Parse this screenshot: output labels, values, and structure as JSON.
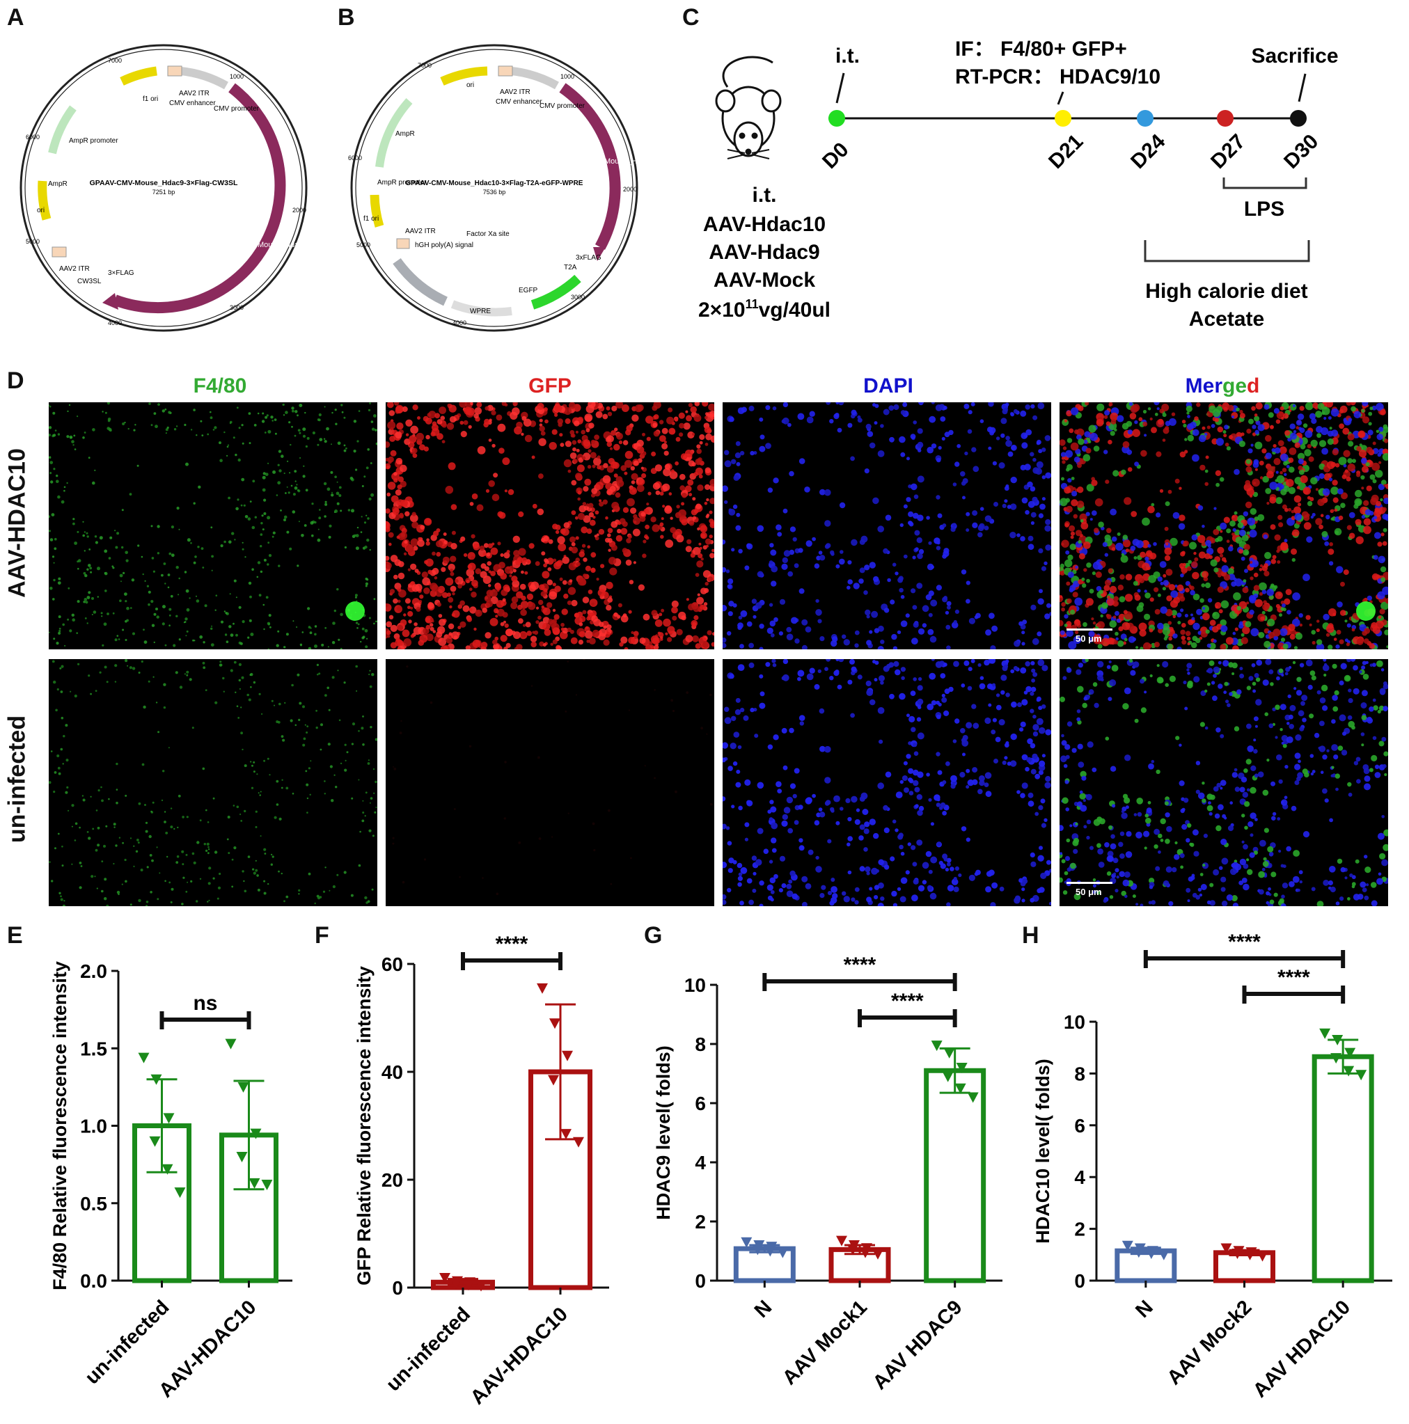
{
  "panels": {
    "A": "A",
    "B": "B",
    "C": "C",
    "D": "D",
    "E": "E",
    "F": "F",
    "G": "G",
    "H": "H"
  },
  "plasmidA": {
    "title": "GPAAV-CMV-Mouse_Hdac9-3×Flag-CW3SL",
    "size": "7251 bp",
    "labels": [
      "f1 ori",
      "AAV2 ITR",
      "CMV enhancer",
      "CMV promoter",
      "AmpR promoter",
      "AmpR",
      "ori",
      "AAV2 ITR",
      "CW3SL",
      "3×FLAG",
      "Mouse_Hdac9"
    ],
    "ticks": [
      "1000",
      "2000",
      "3000",
      "4000",
      "5000",
      "6000",
      "7000"
    ]
  },
  "plasmidB": {
    "title": "GPAAV-CMV-Mouse_Hdac10-3×Flag-T2A-eGFP-WPRE",
    "size": "7536 bp",
    "labels": [
      "ori",
      "AAV2 ITR",
      "CMV enhancer",
      "CMV promoter",
      "AmpR",
      "AmpR promoter",
      "f1 ori",
      "AAV2 ITR",
      "hGH poly(A) signal",
      "Factor Xa site",
      "T2A",
      "3xFLAG",
      "EGFP",
      "WPRE",
      "Mouse_Hdac10"
    ],
    "ticks": [
      "1000",
      "2000",
      "3000",
      "4000",
      "5000",
      "6000",
      "7000"
    ]
  },
  "timeline": {
    "it_top": "i.t.",
    "if_line": "IF：  F4/80+ GFP+",
    "rt_line": "RT-PCR：  HDAC9/10",
    "sacrifice": "Sacrifice",
    "days": [
      "D0",
      "D21",
      "D24",
      "D27",
      "D30"
    ],
    "day_colors": [
      "#22dd22",
      "#ffee00",
      "#3399dd",
      "#cc2222",
      "#111111"
    ],
    "lps": "LPS",
    "diet": "High calorie diet",
    "acetate": "Acetate",
    "it_left": "i.t.",
    "vectors": [
      "AAV-Hdac10",
      "AAV-Hdac9",
      "AAV-Mock"
    ],
    "dose_pre": "2×10",
    "dose_sup": "11",
    "dose_post": "vg/40ul"
  },
  "imaging": {
    "channels": [
      "F4/80",
      "GFP",
      "DAPI"
    ],
    "merged": [
      "Mer",
      "ge",
      "d"
    ],
    "channel_colors": [
      "#33aa33",
      "#dd2222",
      "#1111cc"
    ],
    "rows": [
      "AAV-HDAC10",
      "un-infected"
    ],
    "scale_bar": "50 μm"
  },
  "chart_data": [
    {
      "panel": "E",
      "type": "bar",
      "categories": [
        "un-infected",
        "AAV-HDAC10"
      ],
      "values": [
        1.0,
        0.94
      ],
      "errors": [
        0.3,
        0.35
      ],
      "points": [
        [
          1.44,
          1.3,
          1.05,
          0.9,
          0.72,
          0.57
        ],
        [
          1.53,
          1.25,
          0.95,
          0.8,
          0.63,
          0.62
        ]
      ],
      "colors": [
        "#1a8a1a",
        "#1a8a1a"
      ],
      "ylabel": "F4/80 Relative fluorescence intensity",
      "ylim": [
        0,
        2.0
      ],
      "yticks": [
        "0.0",
        "0.5",
        "1.0",
        "1.5",
        "2.0"
      ],
      "sig": [
        {
          "a": 0,
          "b": 1,
          "label": "ns"
        }
      ]
    },
    {
      "panel": "F",
      "type": "bar",
      "categories": [
        "un-infected",
        "AAV-HDAC10"
      ],
      "values": [
        1.0,
        40.0
      ],
      "errors": [
        0.6,
        12.5
      ],
      "points": [
        [
          1.8,
          1.2,
          1.0,
          0.7,
          0.5,
          0.3
        ],
        [
          55.5,
          49.0,
          43.0,
          38.5,
          28.5,
          27.0
        ]
      ],
      "colors": [
        "#aa1111",
        "#aa1111"
      ],
      "ylabel": "GFP Relative fluorescence intensity",
      "ylim": [
        0,
        60
      ],
      "yticks": [
        "0",
        "20",
        "40",
        "60"
      ],
      "sig": [
        {
          "a": 0,
          "b": 1,
          "label": "****"
        }
      ]
    },
    {
      "panel": "G",
      "type": "bar",
      "categories": [
        "N",
        "AAV Mock1",
        "AAV HDAC9"
      ],
      "values": [
        1.08,
        1.05,
        7.1
      ],
      "errors": [
        0.12,
        0.15,
        0.75
      ],
      "points": [
        [
          1.3,
          1.2,
          1.15,
          1.05,
          1.0,
          0.95
        ],
        [
          1.35,
          1.2,
          1.1,
          1.05,
          0.95,
          0.9
        ],
        [
          7.95,
          7.7,
          7.2,
          6.9,
          6.5,
          6.2
        ]
      ],
      "colors": [
        "#4a6aa8",
        "#aa1111",
        "#1a8a1a"
      ],
      "ylabel": "HDAC9 level( folds)",
      "ylim": [
        0,
        10
      ],
      "yticks": [
        "0",
        "2",
        "4",
        "6",
        "8",
        "10"
      ],
      "sig": [
        {
          "a": 0,
          "b": 2,
          "label": "****"
        },
        {
          "a": 1,
          "b": 2,
          "label": "****"
        }
      ]
    },
    {
      "panel": "H",
      "type": "bar",
      "categories": [
        "N",
        "AAV Mock2",
        "AAV HDAC10"
      ],
      "values": [
        1.15,
        1.08,
        8.65
      ],
      "errors": [
        0.12,
        0.1,
        0.65
      ],
      "points": [
        [
          1.35,
          1.25,
          1.15,
          1.1,
          1.05,
          1.0
        ],
        [
          1.25,
          1.15,
          1.1,
          1.05,
          1.0,
          0.95
        ],
        [
          9.55,
          9.3,
          8.8,
          8.6,
          8.1,
          7.95
        ]
      ],
      "colors": [
        "#4a6aa8",
        "#aa1111",
        "#1a8a1a"
      ],
      "ylabel": "HDAC10 level( folds)",
      "ylim": [
        0,
        10
      ],
      "yticks": [
        "0",
        "2",
        "4",
        "6",
        "8",
        "10"
      ],
      "sig": [
        {
          "a": 0,
          "b": 2,
          "label": "****"
        },
        {
          "a": 1,
          "b": 2,
          "label": "****"
        }
      ]
    }
  ]
}
